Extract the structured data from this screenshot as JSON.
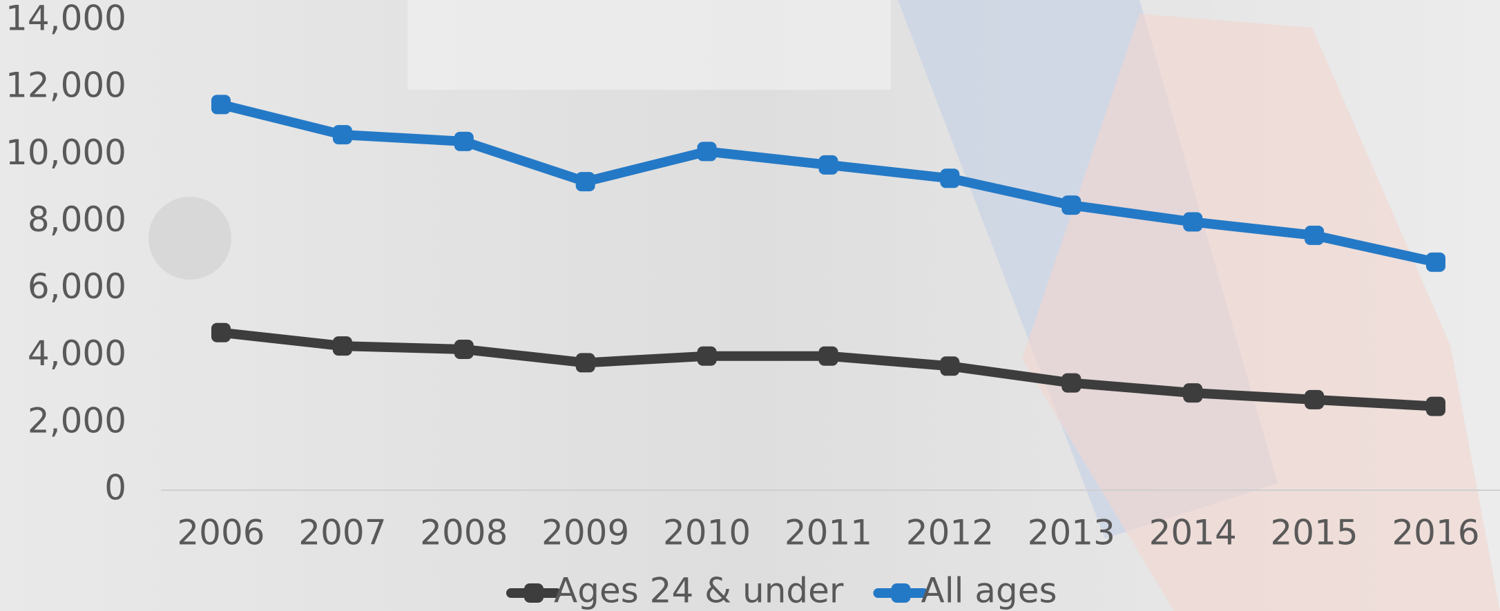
{
  "chart_data": {
    "type": "line",
    "categories": [
      "2006",
      "2007",
      "2008",
      "2009",
      "2010",
      "2011",
      "2012",
      "2013",
      "2014",
      "2015",
      "2016"
    ],
    "series": [
      {
        "name": "Ages 24 & under",
        "color": "#3d3d3d",
        "values": [
          4700,
          4300,
          4200,
          3800,
          4000,
          4000,
          3700,
          3200,
          2900,
          2700,
          2500
        ]
      },
      {
        "name": "All ages",
        "color": "#2479c6",
        "values": [
          11500,
          10600,
          10400,
          9200,
          10100,
          9700,
          9300,
          8500,
          8000,
          7600,
          6800
        ]
      }
    ],
    "ylim": [
      0,
      14000
    ],
    "yticks": [
      0,
      {
        "value": 2000,
        "label": "2,000"
      },
      {
        "value": 4000,
        "label": "4,000"
      },
      {
        "value": 6000,
        "label": "6,000"
      },
      {
        "value": 8000,
        "label": "8,000"
      },
      {
        "value": 10000,
        "label": "10,000"
      },
      {
        "value": 12000,
        "label": "12,000"
      },
      {
        "value": 14000,
        "label": "14,000"
      }
    ],
    "legend": "bottom"
  }
}
